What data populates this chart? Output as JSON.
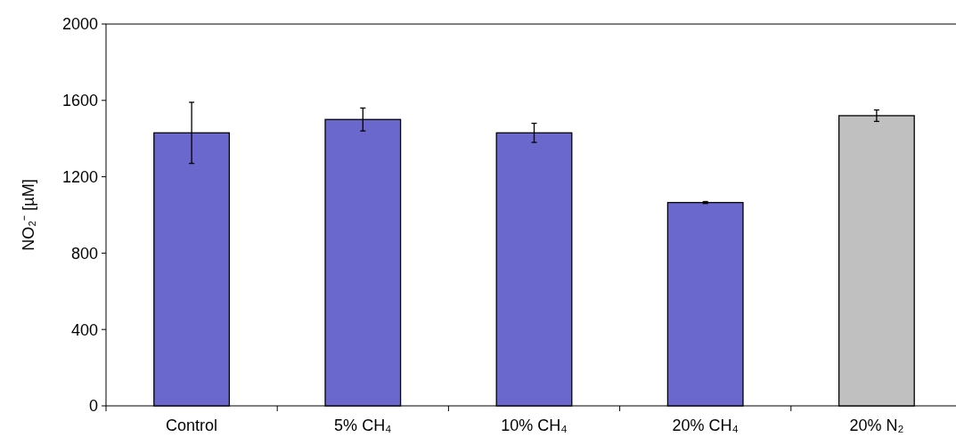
{
  "chart_data": {
    "type": "bar",
    "ylabel": "NO₂⁻ [µM]",
    "categories": [
      "Control",
      "5% CH₄",
      "10% CH₄",
      "20% CH₄",
      "20% N₂"
    ],
    "values": [
      1430,
      1500,
      1430,
      1065,
      1520
    ],
    "errors": [
      160,
      60,
      50,
      5,
      30
    ],
    "colors": [
      "#6a67cd",
      "#6a67cd",
      "#6a67cd",
      "#6a67cd",
      "#c0c0c0"
    ],
    "ylim": [
      0,
      2000
    ],
    "yticks": [
      0,
      400,
      800,
      1200,
      1600,
      2000
    ],
    "grid": false
  }
}
